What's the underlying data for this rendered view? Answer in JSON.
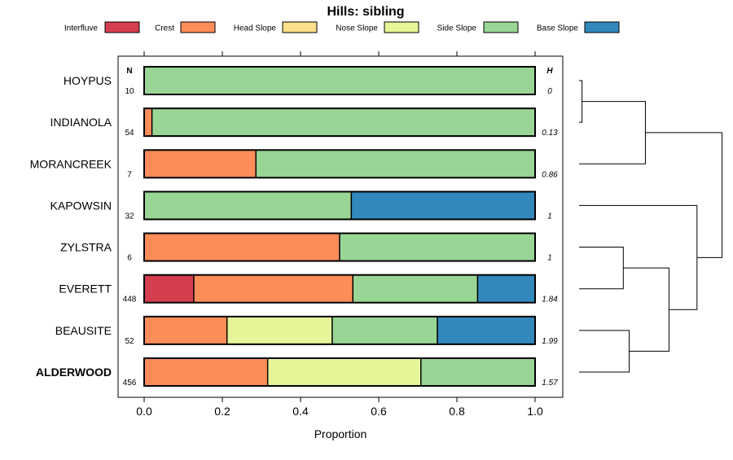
{
  "chart_data": {
    "type": "bar",
    "subtype": "stacked-horizontal-proportion",
    "title": "Hills: sibling",
    "xlabel": "Proportion",
    "xlim": [
      0,
      1
    ],
    "xticks": [
      "0.0",
      "0.2",
      "0.4",
      "0.6",
      "0.8",
      "1.0"
    ],
    "xtick_values": [
      0,
      0.2,
      0.4,
      0.6,
      0.8,
      1.0
    ],
    "n_header": "N",
    "h_header": "H",
    "legend_position": "top",
    "legend": [
      {
        "name": "Interfluve",
        "color": "#d53e4f"
      },
      {
        "name": "Crest",
        "color": "#fc8d59"
      },
      {
        "name": "Head Slope",
        "color": "#fee08b"
      },
      {
        "name": "Nose Slope",
        "color": "#e6f598"
      },
      {
        "name": "Side Slope",
        "color": "#99d594"
      },
      {
        "name": "Base Slope",
        "color": "#3288bd"
      }
    ],
    "series_names": [
      "Interfluve",
      "Crest",
      "Head Slope",
      "Nose Slope",
      "Side Slope",
      "Base Slope"
    ],
    "rows": [
      {
        "label": "HOYPUS",
        "n": "10",
        "h": "0",
        "bold": false,
        "values": [
          0,
          0,
          0,
          0,
          1.0,
          0
        ]
      },
      {
        "label": "INDIANOLA",
        "n": "54",
        "h": "0.13",
        "bold": false,
        "values": [
          0,
          0.02,
          0,
          0,
          0.98,
          0
        ]
      },
      {
        "label": "MORANCREEK",
        "n": "7",
        "h": "0.86",
        "bold": false,
        "values": [
          0,
          0.286,
          0,
          0,
          0.714,
          0
        ]
      },
      {
        "label": "KAPOWSIN",
        "n": "32",
        "h": "1",
        "bold": false,
        "values": [
          0,
          0,
          0,
          0,
          0.53,
          0.47
        ]
      },
      {
        "label": "ZYLSTRA",
        "n": "6",
        "h": "1",
        "bold": false,
        "values": [
          0,
          0.5,
          0,
          0,
          0.5,
          0
        ]
      },
      {
        "label": "EVERETT",
        "n": "448",
        "h": "1.84",
        "bold": false,
        "values": [
          0.127,
          0.407,
          0,
          0,
          0.319,
          0.147
        ]
      },
      {
        "label": "BEAUSITE",
        "n": "52",
        "h": "1.99",
        "bold": false,
        "values": [
          0,
          0.212,
          0,
          0.269,
          0.269,
          0.25
        ]
      },
      {
        "label": "ALDERWOOD",
        "n": "456",
        "h": "1.57",
        "bold": true,
        "values": [
          0,
          0.316,
          0,
          0.392,
          0.292,
          0
        ]
      }
    ],
    "dendrogram": {
      "leaves": [
        "HOYPUS",
        "INDIANOLA",
        "MORANCREEK",
        "KAPOWSIN",
        "ZYLSTRA",
        "EVERETT",
        "BEAUSITE",
        "ALDERWOOD"
      ],
      "merges": [
        {
          "a": "HOYPUS",
          "b": "INDIANOLA",
          "height": 0.02
        },
        {
          "a": "(HOYPUS,INDIANOLA)",
          "b": "MORANCREEK",
          "height": 0.45
        },
        {
          "a": "ZYLSTRA",
          "b": "EVERETT",
          "height": 0.3
        },
        {
          "a": "BEAUSITE",
          "b": "ALDERWOOD",
          "height": 0.34
        },
        {
          "a": "(ZYLSTRA,EVERETT)",
          "b": "(BEAUSITE,ALDERWOOD)",
          "height": 0.61
        },
        {
          "a": "KAPOWSIN",
          "b": "((ZYLSTRA,EVERETT),(BEAUSITE,ALDERWOOD))",
          "height": 0.8
        },
        {
          "a": "((HOYPUS,INDIANOLA),MORANCREEK)",
          "b": "(KAPOWSIN,...)",
          "height": 0.97
        }
      ],
      "max_height": 1.0
    }
  }
}
